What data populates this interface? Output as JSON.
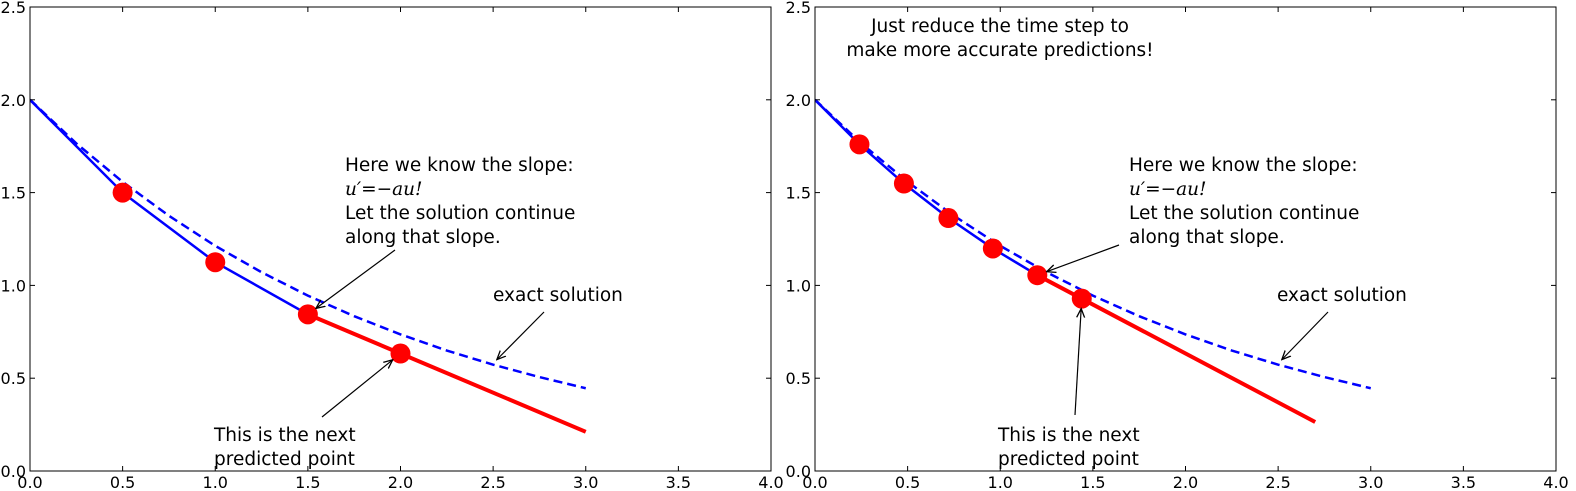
{
  "chart_data": [
    {
      "type": "line",
      "xlim": [
        0,
        4.0
      ],
      "ylim": [
        0,
        2.5
      ],
      "xticks": [
        "0.0",
        "0.5",
        "1.0",
        "1.5",
        "2.0",
        "2.5",
        "3.0",
        "3.5",
        "4.0"
      ],
      "yticks": [
        "0.0",
        "0.5",
        "1.0",
        "1.5",
        "2.0",
        "2.5"
      ],
      "grid": false,
      "series": [
        {
          "style": "dashed",
          "color": "#0000ff",
          "x": [
            0,
            0.25,
            0.5,
            0.75,
            1,
            1.25,
            1.5,
            1.75,
            2,
            2.25,
            2.5,
            2.75,
            3
          ],
          "y": [
            2.0,
            1.765,
            1.558,
            1.375,
            1.213,
            1.071,
            0.945,
            0.834,
            0.736,
            0.649,
            0.573,
            0.506,
            0.446
          ]
        },
        {
          "style": "solid",
          "color": "#0000ff",
          "x": [
            0,
            0.5,
            1.0,
            1.5
          ],
          "y": [
            2.0,
            1.5,
            1.125,
            0.844
          ]
        },
        {
          "style": "points",
          "color": "#ff0000",
          "x": [
            0.5,
            1.0,
            1.5,
            2.0
          ],
          "y": [
            1.5,
            1.125,
            0.844,
            0.633
          ]
        },
        {
          "style": "solid-thick",
          "color": "#ff0000",
          "x": [
            1.5,
            3.0
          ],
          "y": [
            0.844,
            0.211
          ]
        }
      ],
      "annotations": [
        {
          "lines": [
            "Here we know the slope:",
            "u′=−au!",
            "Let the solution continue",
            "along that slope."
          ]
        },
        {
          "lines": [
            "exact solution"
          ]
        },
        {
          "lines": [
            "This is the next",
            "predicted point"
          ]
        }
      ]
    },
    {
      "type": "line",
      "xlim": [
        0,
        4.0
      ],
      "ylim": [
        0,
        2.5
      ],
      "xticks": [
        "0.0",
        "0.5",
        "1.0",
        "1.5",
        "2.0",
        "2.5",
        "3.0",
        "3.5",
        "4.0"
      ],
      "yticks": [
        "0.0",
        "0.5",
        "1.0",
        "1.5",
        "2.0",
        "2.5"
      ],
      "grid": false,
      "series": [
        {
          "style": "dashed",
          "color": "#0000ff",
          "x": [
            0,
            0.25,
            0.5,
            0.75,
            1,
            1.25,
            1.5,
            1.75,
            2,
            2.25,
            2.5,
            2.75,
            3
          ],
          "y": [
            2.0,
            1.765,
            1.558,
            1.375,
            1.213,
            1.071,
            0.945,
            0.834,
            0.736,
            0.649,
            0.573,
            0.506,
            0.446
          ]
        },
        {
          "style": "solid",
          "color": "#0000ff",
          "x": [
            0,
            0.24,
            0.48,
            0.72,
            0.96,
            1.2
          ],
          "y": [
            2.0,
            1.76,
            1.549,
            1.363,
            1.199,
            1.055
          ]
        },
        {
          "style": "points",
          "color": "#ff0000",
          "x": [
            0.24,
            0.48,
            0.72,
            0.96,
            1.2,
            1.44
          ],
          "y": [
            1.76,
            1.549,
            1.363,
            1.199,
            1.055,
            0.929
          ]
        },
        {
          "style": "solid-thick",
          "color": "#ff0000",
          "x": [
            1.2,
            2.7
          ],
          "y": [
            1.055,
            0.264
          ]
        }
      ],
      "annotations": [
        {
          "lines": [
            "Just reduce the time step to",
            "make more accurate predictions!"
          ]
        },
        {
          "lines": [
            "Here we know the slope:",
            "u′=−au!",
            "Let the solution continue",
            "along that slope."
          ]
        },
        {
          "lines": [
            "exact solution"
          ]
        },
        {
          "lines": [
            "This is the next",
            "predicted point"
          ]
        }
      ]
    }
  ]
}
